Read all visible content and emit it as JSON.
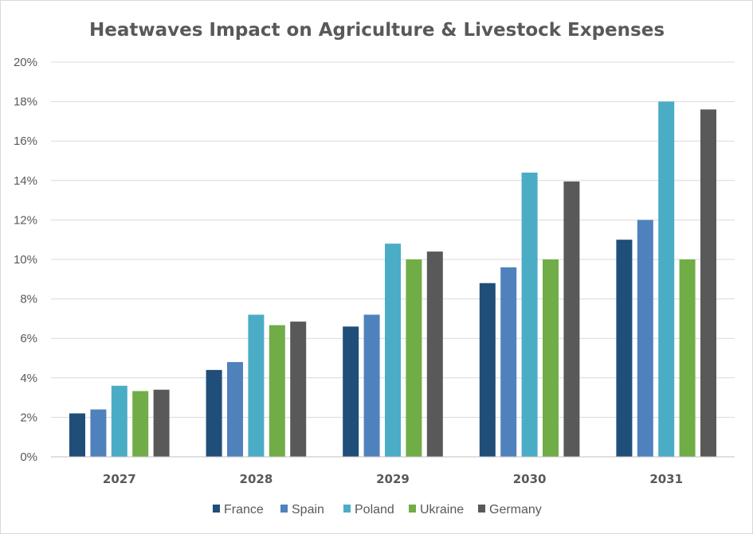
{
  "chart_data": {
    "type": "bar",
    "title": "Heatwaves Impact on Agriculture & Livestock Expenses",
    "xlabel": "",
    "ylabel": "",
    "categories": [
      "2027",
      "2028",
      "2029",
      "2030",
      "2031"
    ],
    "ylim": [
      0,
      20
    ],
    "yticks": [
      "0%",
      "2%",
      "4%",
      "6%",
      "8%",
      "10%",
      "12%",
      "14%",
      "16%",
      "18%",
      "20%"
    ],
    "grid": true,
    "legend_position": "bottom",
    "series": [
      {
        "name": "France",
        "color": "#1f4e79",
        "values": [
          2.2,
          4.4,
          6.6,
          8.8,
          11.0
        ]
      },
      {
        "name": "Spain",
        "color": "#4f81bd",
        "values": [
          2.4,
          4.8,
          7.2,
          9.6,
          12.0
        ]
      },
      {
        "name": "Poland",
        "color": "#4bacc6",
        "values": [
          3.6,
          7.2,
          10.8,
          14.4,
          18.0
        ]
      },
      {
        "name": "Ukraine",
        "color": "#70ad47",
        "values": [
          3.33,
          6.67,
          10.0,
          10.0,
          10.0
        ]
      },
      {
        "name": "Germany",
        "color": "#595959",
        "values": [
          3.4,
          6.85,
          10.4,
          13.95,
          17.6
        ]
      }
    ]
  }
}
